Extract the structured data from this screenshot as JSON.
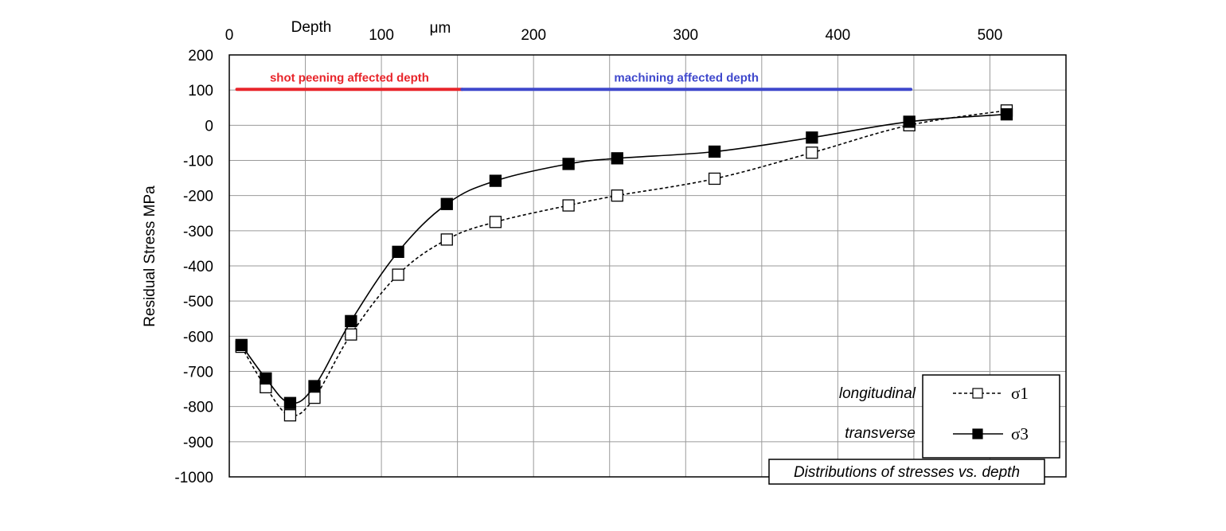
{
  "chart_data": {
    "type": "line",
    "xlabel": "Depth",
    "xunit": "μm",
    "ylabel": "Residual Stress  MPa",
    "xlim": [
      0,
      550
    ],
    "ylim": [
      -1000,
      200
    ],
    "xticks": [
      "0",
      "100",
      "200",
      "300",
      "400",
      "500"
    ],
    "yticks": [
      "200",
      "100",
      "0",
      "-100",
      "-200",
      "-300",
      "-400",
      "-500",
      "-600",
      "-700",
      "-800",
      "-900",
      "-1000"
    ],
    "grid": true,
    "x_axis_position": "top",
    "series": [
      {
        "name": "σ1",
        "legend_desc": "longitudinal",
        "style": "dashed",
        "marker": "open-square",
        "color": "#000000",
        "x": [
          8,
          24,
          40,
          56,
          80,
          111,
          143,
          175,
          223,
          255,
          319,
          383,
          447,
          511
        ],
        "y": [
          -630,
          -745,
          -825,
          -775,
          -595,
          -425,
          -325,
          -275,
          -228,
          -200,
          -152,
          -78,
          0,
          42
        ]
      },
      {
        "name": "σ3",
        "legend_desc": "transverse",
        "style": "solid",
        "marker": "filled-square",
        "color": "#000000",
        "x": [
          8,
          24,
          40,
          56,
          80,
          111,
          143,
          175,
          223,
          255,
          319,
          383,
          447,
          511
        ],
        "y": [
          -625,
          -720,
          -790,
          -742,
          -557,
          -360,
          -224,
          -158,
          -110,
          -94,
          -75,
          -35,
          10,
          31
        ]
      }
    ],
    "bands": [
      {
        "label": "shot peening affected depth",
        "x_start": 5,
        "x_end": 153,
        "y": 102,
        "color": "#e8252b"
      },
      {
        "label": "machining affected depth",
        "x_start": 153,
        "x_end": 448,
        "y": 102,
        "color": "#3f48cc"
      }
    ],
    "legend_placement": "bottom-right",
    "annotation": "Distributions of stresses vs. depth"
  }
}
